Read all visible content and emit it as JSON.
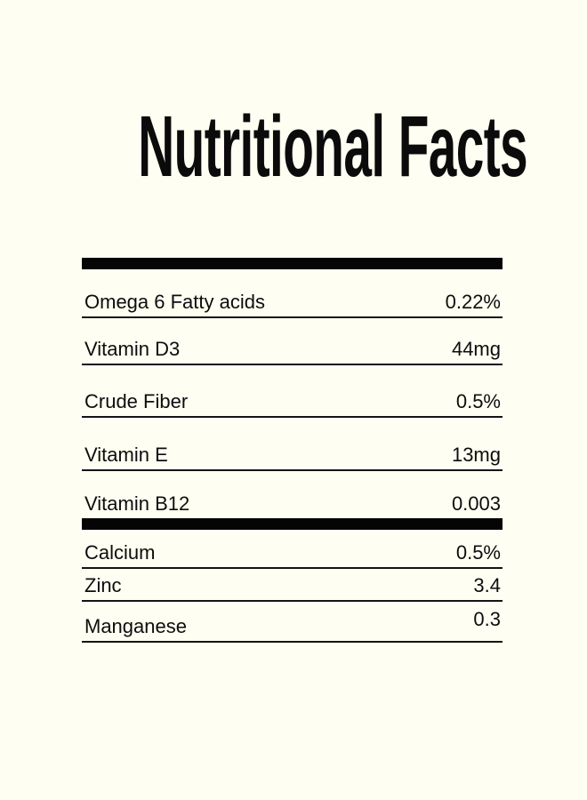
{
  "colors": {
    "background": "#FFFEF2",
    "ink": "#0D0D0D",
    "bar": "#050505"
  },
  "title": "Nutritional Facts",
  "table": {
    "sections": [
      {
        "rows": [
          {
            "label": "Omega 6 Fatty acids",
            "value": "0.22%"
          },
          {
            "label": "Vitamin D3",
            "value": "44mg"
          },
          {
            "label": "Crude Fiber",
            "value": "0.5%"
          },
          {
            "label": "Vitamin E",
            "value": "13mg"
          },
          {
            "label": "Vitamin B12",
            "value": "0.003"
          }
        ]
      },
      {
        "rows": [
          {
            "label": "Calcium",
            "value": "0.5%"
          },
          {
            "label": "Zinc",
            "value": "3.4"
          },
          {
            "label": "Manganese",
            "value": "0.3"
          }
        ]
      }
    ]
  }
}
